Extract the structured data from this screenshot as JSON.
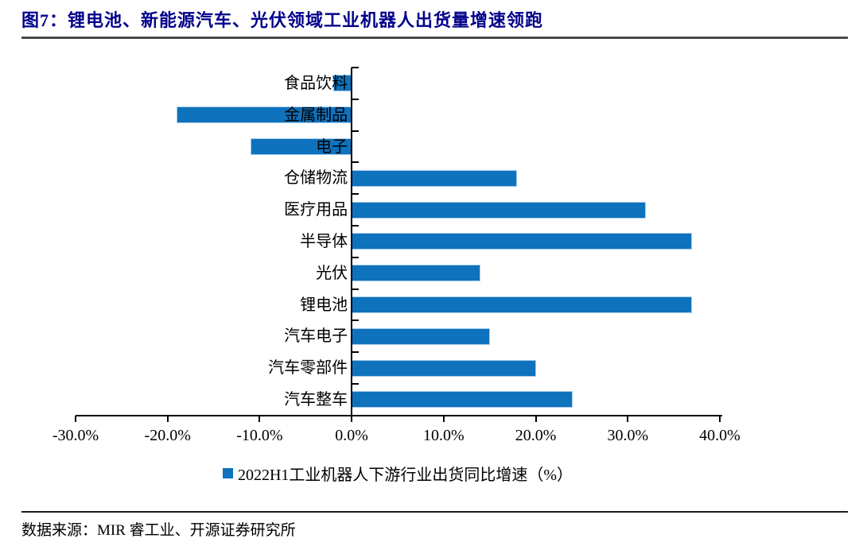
{
  "figure": {
    "title": "图7：锂电池、新能源汽车、光伏领域工业机器人出货量增速领跑",
    "source": "数据来源：MIR 睿工业、开源证券研究所"
  },
  "chart_data": {
    "type": "bar",
    "orientation": "horizontal",
    "title": "",
    "xlabel": "",
    "ylabel": "",
    "categories": [
      "食品饮料",
      "金属制品",
      "电子",
      "仓储物流",
      "医疗用品",
      "半导体",
      "光伏",
      "锂电池",
      "汽车电子",
      "汽车零部件",
      "汽车整车"
    ],
    "values": [
      -2,
      -19,
      -11,
      18,
      32,
      37,
      14,
      37,
      15,
      20,
      24
    ],
    "series_name": "2022H1工业机器人下游行业出货同比增速（%）",
    "legend": {
      "label": "2022H1工业机器人下游行业出货同比增速（%）",
      "position": "bottom"
    },
    "xlim": [
      -30,
      40
    ],
    "x_tick_values": [
      -30,
      -20,
      -10,
      0,
      10,
      20,
      30,
      40
    ],
    "x_tick_labels": [
      "-30.0%",
      "-20.0%",
      "-10.0%",
      "0.0%",
      "10.0%",
      "20.0%",
      "30.0%",
      "40.0%"
    ],
    "grid": false,
    "bar_color": "#0e72bc",
    "bar_border_color": "#a6caec",
    "title_color": "#00008B"
  }
}
